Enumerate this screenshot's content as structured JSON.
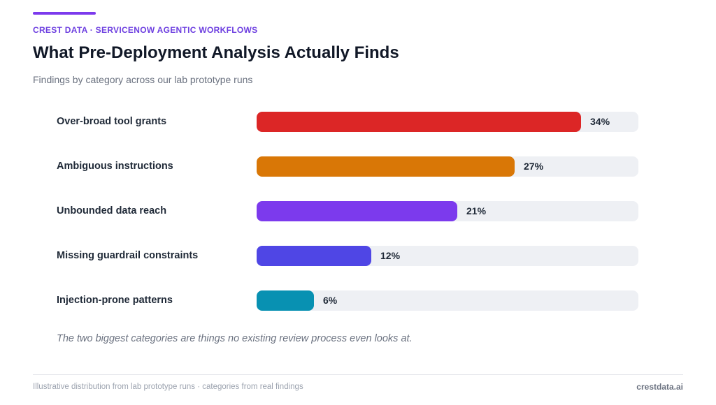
{
  "header": {
    "eyebrow": "CREST DATA · SERVICENOW AGENTIC WORKFLOWS",
    "title": "What Pre-Deployment Analysis Actually Finds",
    "subtitle": "Findings by category across our lab prototype runs"
  },
  "chart_data": {
    "type": "bar",
    "orientation": "horizontal",
    "title": "",
    "xlabel": "",
    "ylabel": "",
    "xlim": [
      0,
      40
    ],
    "grid": false,
    "categories": [
      "Over-broad tool grants",
      "Ambiguous instructions",
      "Unbounded data reach",
      "Missing guardrail constraints",
      "Injection-prone patterns"
    ],
    "values": [
      34,
      27,
      21,
      12,
      6
    ],
    "value_labels": [
      "34%",
      "27%",
      "21%",
      "12%",
      "6%"
    ],
    "colors": [
      "#dc2626",
      "#d97706",
      "#7c3aed",
      "#4f46e5",
      "#0891b2"
    ],
    "track_color": "#eef0f4"
  },
  "takeaway": "The two biggest categories are things no existing review process even looks at.",
  "footer": {
    "note": "Illustrative distribution from lab prototype runs · categories from real findings",
    "brand": "crestdata.ai"
  }
}
